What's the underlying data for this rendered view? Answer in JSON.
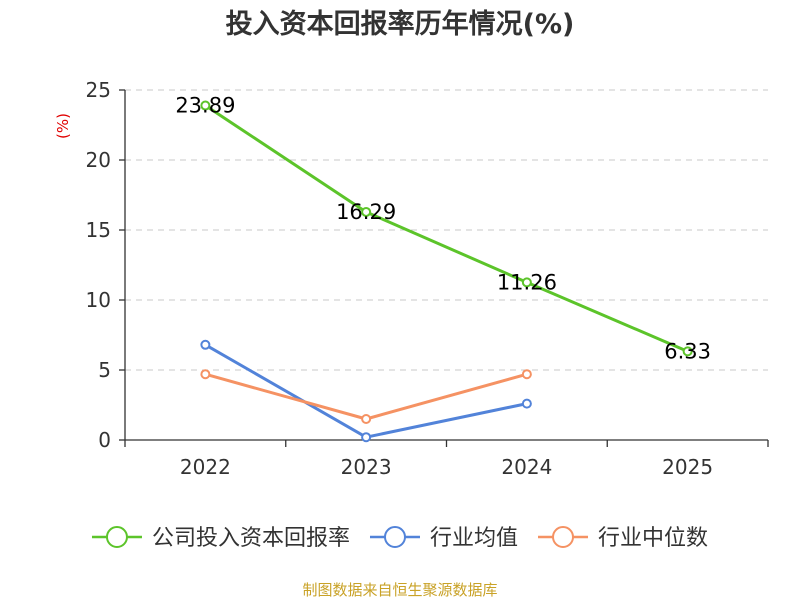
{
  "chart_data": {
    "type": "line",
    "title": "投入资本回报率历年情况(%)",
    "ylabel": "(%)",
    "xlabel": "",
    "categories": [
      "2022",
      "2023",
      "2024",
      "2025"
    ],
    "ylim": [
      0,
      25
    ],
    "yticks": [
      0,
      5,
      10,
      15,
      20,
      25
    ],
    "grid": true,
    "legend_position": "bottom",
    "series": [
      {
        "name": "公司投入资本回报率",
        "color": "#5cc42a",
        "values": [
          23.89,
          16.29,
          11.26,
          6.33
        ],
        "labels": [
          "23.89",
          "16.29",
          "11.26",
          "6.33"
        ],
        "show_labels": true
      },
      {
        "name": "行业均值",
        "color": "#5283d9",
        "values": [
          6.8,
          0.2,
          2.6,
          null
        ],
        "show_labels": false
      },
      {
        "name": "行业中位数",
        "color": "#f59263",
        "values": [
          4.7,
          1.5,
          4.7,
          null
        ],
        "show_labels": false
      }
    ],
    "source": "制图数据来自恒生聚源数据库"
  }
}
